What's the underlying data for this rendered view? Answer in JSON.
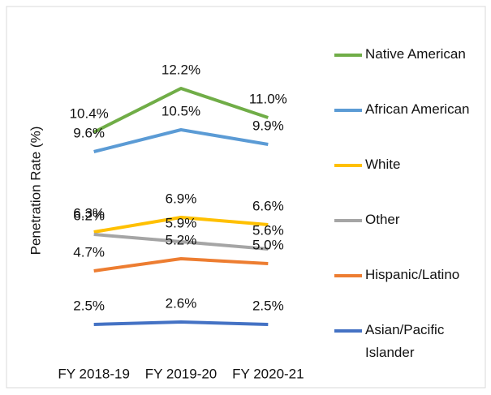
{
  "chart_data": {
    "type": "line",
    "y_label": "Penetration Rate (%)",
    "categories": [
      "FY 2018-19",
      "FY 2019-20",
      "FY 2020-21"
    ],
    "ylim": [
      2,
      13
    ],
    "series": [
      {
        "name": "Native American",
        "color": "#70ad47",
        "values": [
          10.4,
          12.2,
          11.0
        ],
        "value_labels": [
          "10.4%",
          "12.2%",
          "11.0%"
        ]
      },
      {
        "name": "African American",
        "color": "#5b9bd5",
        "values": [
          9.6,
          10.5,
          9.9
        ],
        "value_labels": [
          "9.6%",
          "10.5%",
          "9.9%"
        ]
      },
      {
        "name": "White",
        "color": "#ffc000",
        "values": [
          6.3,
          6.9,
          6.6
        ],
        "value_labels": [
          "6.3%",
          "6.9%",
          "6.6%"
        ]
      },
      {
        "name": "Other",
        "color": "#a5a5a5",
        "values": [
          6.2,
          5.9,
          5.6
        ],
        "value_labels": [
          "6.2%",
          "5.9%",
          "5.6%"
        ]
      },
      {
        "name": "Hispanic/Latino",
        "color": "#ed7d31",
        "values": [
          4.7,
          5.2,
          5.0
        ],
        "value_labels": [
          "4.7%",
          "5.2%",
          "5.0%"
        ]
      },
      {
        "name": "Asian/Pacific Islander",
        "color": "#4472c4",
        "values": [
          2.5,
          2.6,
          2.5
        ],
        "value_labels": [
          "2.5%",
          "2.6%",
          "2.5%"
        ]
      }
    ]
  }
}
